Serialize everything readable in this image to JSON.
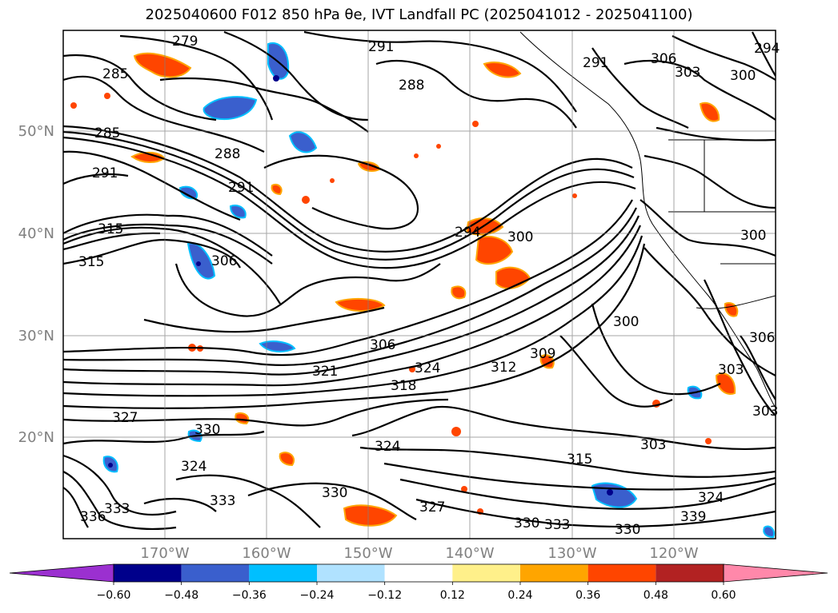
{
  "title": "2025040600 F012 850 hPa θe, IVT Landfall PC (2025041012 - 2025041100)",
  "lat_labels": [
    "50°N",
    "40°N",
    "30°N",
    "20°N"
  ],
  "lon_labels": [
    "170°W",
    "160°W",
    "150°W",
    "140°W",
    "130°W",
    "120°W"
  ],
  "contour_labels": [
    {
      "t": "279"
    },
    {
      "t": "291"
    },
    {
      "t": "285"
    },
    {
      "t": "288"
    },
    {
      "t": "285"
    },
    {
      "t": "288"
    },
    {
      "t": "291"
    },
    {
      "t": "291"
    },
    {
      "t": "315"
    },
    {
      "t": "315"
    },
    {
      "t": "306"
    },
    {
      "t": "294"
    },
    {
      "t": "300"
    },
    {
      "t": "306"
    },
    {
      "t": "321"
    },
    {
      "t": "324"
    },
    {
      "t": "318"
    },
    {
      "t": "312"
    },
    {
      "t": "309"
    },
    {
      "t": "300"
    },
    {
      "t": "303"
    },
    {
      "t": "306"
    },
    {
      "t": "303"
    },
    {
      "t": "327"
    },
    {
      "t": "330"
    },
    {
      "t": "324"
    },
    {
      "t": "324"
    },
    {
      "t": "315"
    },
    {
      "t": "303"
    },
    {
      "t": "330"
    },
    {
      "t": "327"
    },
    {
      "t": "333"
    },
    {
      "t": "330"
    },
    {
      "t": "333"
    },
    {
      "t": "336"
    },
    {
      "t": "333"
    },
    {
      "t": "330"
    },
    {
      "t": "324"
    },
    {
      "t": "339"
    },
    {
      "t": "306"
    },
    {
      "t": "303"
    },
    {
      "t": "300"
    },
    {
      "t": "294"
    },
    {
      "t": "291"
    },
    {
      "t": "300"
    }
  ],
  "colorbar": {
    "ticks": [
      "−0.60",
      "−0.48",
      "−0.36",
      "−0.24",
      "−0.12",
      "0.12",
      "0.24",
      "0.36",
      "0.48",
      "0.60"
    ],
    "colors": [
      "#9b30d0",
      "#00008b",
      "#3a5fcd",
      "#00bfff",
      "#b0e2ff",
      "#ffffff",
      "#fff08a",
      "#ffa500",
      "#ff4500",
      "#b22222",
      "#ff88aa"
    ]
  }
}
